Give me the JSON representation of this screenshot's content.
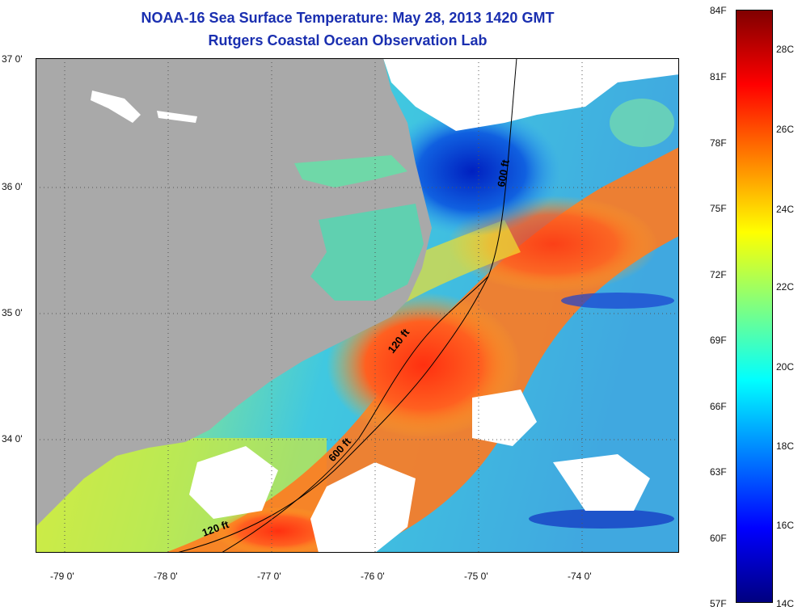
{
  "header": {
    "title": "NOAA-16 Sea Surface Temperature:  May 28, 2013 1420 GMT",
    "subtitle": "Rutgers Coastal Ocean Observation Lab"
  },
  "map": {
    "lat_labels": [
      "37 0'",
      "36 0'",
      "35 0'",
      "34 0'"
    ],
    "lon_labels": [
      "-79 0'",
      "-78 0'",
      "-77 0'",
      "-76 0'",
      "-75 0'",
      "-74 0'"
    ],
    "isobaths": [
      {
        "label": "120 ft"
      },
      {
        "label": "120 ft"
      },
      {
        "label": "600 ft"
      },
      {
        "label": "600 ft"
      }
    ],
    "colors": {
      "land": "#a9a9a9",
      "cloud": "#ffffff",
      "contour": "#000000"
    }
  },
  "colorbar": {
    "fahrenheit_labels": [
      "84F",
      "81F",
      "78F",
      "75F",
      "72F",
      "69F",
      "66F",
      "63F",
      "60F",
      "57F"
    ],
    "celsius_labels": [
      "28C",
      "26C",
      "24C",
      "22C",
      "20C",
      "18C",
      "16C",
      "14C"
    ],
    "colors": [
      "#000080",
      "#0000ff",
      "#0080ff",
      "#00ffff",
      "#80ff80",
      "#ffff00",
      "#ff8000",
      "#ff0000",
      "#800000"
    ]
  }
}
